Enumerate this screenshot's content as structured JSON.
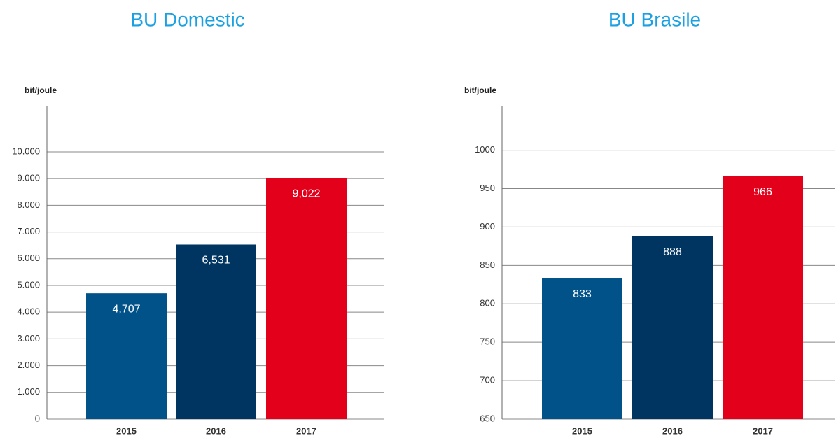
{
  "chart_data": [
    {
      "type": "bar",
      "title": "BU Domestic",
      "y_label": "bit/joule",
      "categories": [
        "2015",
        "2016",
        "2017"
      ],
      "values": [
        4707,
        6531,
        9022
      ],
      "value_labels": [
        "4,707",
        "6,531",
        "9,022"
      ],
      "colors": [
        "#005289",
        "#003561",
        "#e2001a"
      ],
      "ylim": [
        0,
        11700
      ],
      "yticks": [
        0,
        {
          "value": 1000,
          "label": "1.000"
        },
        {
          "value": 2000,
          "label": "2.000"
        },
        {
          "value": 3000,
          "label": "3.000"
        },
        {
          "value": 4000,
          "label": "4.000"
        },
        {
          "value": 5000,
          "label": "5.000"
        },
        {
          "value": 6000,
          "label": "6.000"
        },
        {
          "value": 7000,
          "label": "7.000"
        },
        {
          "value": 8000,
          "label": "8.000"
        },
        {
          "value": 9000,
          "label": "9.000"
        },
        {
          "value": 10000,
          "label": "10.000"
        }
      ],
      "grid": true
    },
    {
      "type": "bar",
      "title": "BU Brasile",
      "y_label": "bit/joule",
      "categories": [
        "2015",
        "2016",
        "2017"
      ],
      "values": [
        833,
        888,
        966
      ],
      "colors": [
        "#005289",
        "#003561",
        "#e2001a"
      ],
      "ylim": [
        650,
        1057
      ],
      "yticks": [
        650,
        700,
        750,
        800,
        850,
        900,
        950,
        1000
      ],
      "grid": true
    }
  ]
}
